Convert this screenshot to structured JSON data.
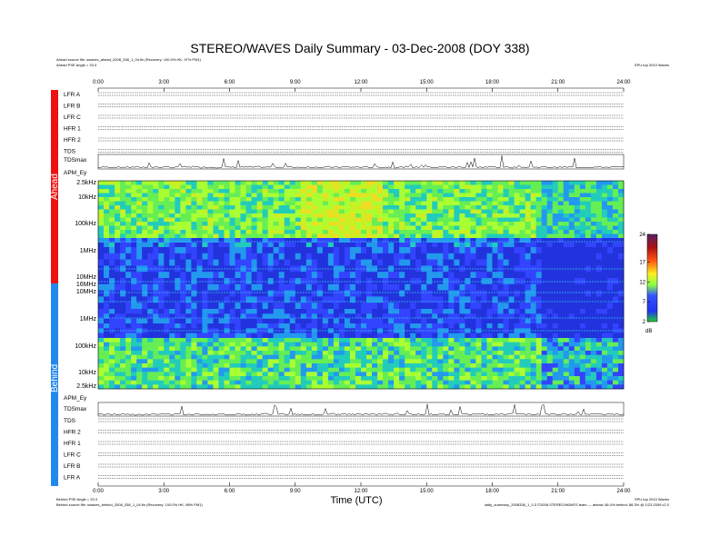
{
  "chart_data": {
    "type": "heatmap",
    "title": "STEREO/WAVES Daily Summary - 03-Dec-2008 (DOY 338)",
    "xlabel": "Time (UTC)",
    "x_ticks": [
      "0:00",
      "3:00",
      "6:00",
      "9:00",
      "12:00",
      "15:00",
      "18:00",
      "21:00",
      "24:00"
    ],
    "xlim_hours": [
      0,
      24
    ],
    "ahead": {
      "side_label": "Ahead",
      "color": "#ee1111",
      "source_line": "Ahead source file: swaves_ahead_2008_338_1_04.fin (Recovery: 100.0% HK, 97% PM1)",
      "angle_line": "Ahead PSE Angle = 33.3",
      "lfr_hfr_rows": [
        "LFR A",
        "LFR B",
        "LFR C",
        "HFR 1",
        "HFR 2",
        "TDS"
      ],
      "tds_max_label": "TDSmax",
      "apm_label": "APM_Ey",
      "freq_ticks": [
        "2.5kHz",
        "10kHz",
        "100kHz",
        "1MHz",
        "10MHz",
        "16MHz"
      ]
    },
    "behind": {
      "side_label": "Behind",
      "color": "#2288ee",
      "source_line": "Behind source file: swaves_behind_2008_338_1_04.fin (Recovery: 100.0% HK, 98% PM1)",
      "angle_line": "Behind PSE Angle = 33.3",
      "lfr_hfr_rows": [
        "TDS",
        "HFR 2",
        "HFR 1",
        "LFR C",
        "LFR B",
        "LFR A"
      ],
      "tds_max_label": "TDSmax",
      "apm_label": "APM_Ey",
      "freq_ticks": [
        "10MHz",
        "1MHz",
        "100kHz",
        "10kHz",
        "2.5kHz"
      ]
    },
    "colorbar": {
      "unit": "dB",
      "ticks": [
        2,
        7,
        12,
        17,
        24
      ],
      "range": [
        2,
        24
      ]
    },
    "footer_right_top": "SPU top 2010 Waves",
    "footer_right_bottom": "daily_summary_2008338_1_0.3    ©2008 STEREO/WAVES team — ahead: 66.4% behind: 88.3% @ 1/23 2009 v2.0"
  }
}
